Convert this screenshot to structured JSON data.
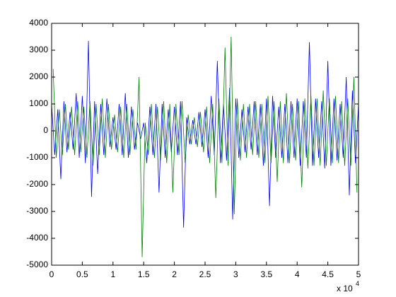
{
  "chart_data": {
    "type": "line",
    "x_multiplier": {
      "base": "x 10",
      "exponent": "4"
    },
    "xlim": [
      0,
      5
    ],
    "xticks": [
      0,
      0.5,
      1,
      1.5,
      2,
      2.5,
      3,
      3.5,
      4,
      4.5,
      5
    ],
    "ylim": [
      -5000,
      4000
    ],
    "yticks": [
      -5000,
      -4000,
      -3000,
      -2000,
      -1000,
      0,
      1000,
      2000,
      3000,
      4000
    ],
    "grid": false,
    "series": [
      {
        "color": "#0000ff",
        "x": [
          0,
          0.05,
          0.1,
          0.15,
          0.2,
          0.25,
          0.3,
          0.35,
          0.4,
          0.45,
          0.5,
          0.55,
          0.6,
          0.65,
          0.7,
          0.75,
          0.8,
          0.85,
          0.9,
          0.95,
          1,
          1.05,
          1.1,
          1.15,
          1.2,
          1.25,
          1.3,
          1.35,
          1.4,
          1.45,
          1.5,
          1.55,
          1.6,
          1.65,
          1.7,
          1.75,
          1.8,
          1.85,
          1.9,
          1.95,
          2,
          2.05,
          2.1,
          2.15,
          2.2,
          2.25,
          2.3,
          2.35,
          2.4,
          2.45,
          2.5,
          2.55,
          2.6,
          2.65,
          2.7,
          2.75,
          2.8,
          2.85,
          2.9,
          2.95,
          3,
          3.05,
          3.1,
          3.15,
          3.2,
          3.25,
          3.3,
          3.35,
          3.4,
          3.45,
          3.5,
          3.55,
          3.6,
          3.65,
          3.7,
          3.75,
          3.8,
          3.85,
          3.9,
          3.95,
          4,
          4.05,
          4.1,
          4.15,
          4.2,
          4.25,
          4.3,
          4.35,
          4.4,
          4.45,
          4.5,
          4.55,
          4.6,
          4.65,
          4.7,
          4.75,
          4.8,
          4.85,
          4.9,
          4.95,
          5
        ],
        "values": [
          1000,
          -900,
          800,
          -1800,
          1100,
          -800,
          700,
          -700,
          1400,
          -1000,
          1300,
          -1200,
          3350,
          -2450,
          1100,
          -1600,
          1000,
          -900,
          1200,
          -600,
          500,
          -700,
          1000,
          -900,
          1400,
          -1000,
          900,
          -700,
          300,
          -300,
          300,
          -1200,
          900,
          -900,
          1000,
          -2300,
          1000,
          -1000,
          800,
          -800,
          900,
          -900,
          1100,
          -3600,
          500,
          -500,
          400,
          -500,
          700,
          -600,
          800,
          -1000,
          1300,
          -900,
          2600,
          -1200,
          1000,
          -1100,
          1600,
          -3300,
          1200,
          -1000,
          800,
          -800,
          900,
          -700,
          1100,
          -900,
          1000,
          -1300,
          1200,
          -2800,
          1300,
          -1000,
          900,
          -1000,
          1000,
          -1200,
          1100,
          -1000,
          1200,
          -1300,
          1100,
          -1000,
          3300,
          -1300,
          1200,
          -1000,
          1100,
          -1400,
          2600,
          -1300,
          1200,
          -1100,
          1000,
          -1000,
          2000,
          -2400,
          1500,
          -1200,
          1000
        ]
      },
      {
        "color": "#008000",
        "x": [
          0.025,
          0.075,
          0.125,
          0.175,
          0.225,
          0.275,
          0.325,
          0.375,
          0.425,
          0.475,
          0.525,
          0.575,
          0.625,
          0.675,
          0.725,
          0.775,
          0.825,
          0.875,
          0.925,
          0.975,
          1.025,
          1.075,
          1.125,
          1.175,
          1.225,
          1.275,
          1.325,
          1.375,
          1.425,
          1.475,
          1.525,
          1.575,
          1.625,
          1.675,
          1.725,
          1.775,
          1.825,
          1.875,
          1.925,
          1.975,
          2.025,
          2.075,
          2.125,
          2.175,
          2.225,
          2.275,
          2.325,
          2.375,
          2.425,
          2.475,
          2.525,
          2.575,
          2.625,
          2.675,
          2.725,
          2.775,
          2.825,
          2.875,
          2.925,
          2.975,
          3.025,
          3.075,
          3.125,
          3.175,
          3.225,
          3.275,
          3.325,
          3.375,
          3.425,
          3.475,
          3.525,
          3.575,
          3.625,
          3.675,
          3.725,
          3.775,
          3.825,
          3.875,
          3.925,
          3.975,
          4.025,
          4.075,
          4.125,
          4.175,
          4.225,
          4.275,
          4.325,
          4.375,
          4.425,
          4.475,
          4.525,
          4.575,
          4.625,
          4.675,
          4.725,
          4.775,
          4.825,
          4.875,
          4.925,
          4.975
        ],
        "values": [
          2300,
          -1000,
          800,
          -900,
          1000,
          -700,
          900,
          -900,
          1100,
          -800,
          900,
          -1000,
          1100,
          -1300,
          1000,
          -900,
          1200,
          -1000,
          1000,
          -700,
          600,
          -800,
          900,
          -1000,
          1000,
          -900,
          800,
          -700,
          2000,
          -4700,
          300,
          -900,
          1000,
          -1000,
          900,
          -1100,
          1100,
          -1200,
          1000,
          -2300,
          1000,
          -900,
          1100,
          -1200,
          600,
          -500,
          500,
          -600,
          700,
          -800,
          900,
          -1200,
          1000,
          -2500,
          1200,
          -1200,
          3100,
          -1300,
          3500,
          -3100,
          1200,
          -1100,
          1000,
          -1000,
          1000,
          -900,
          1100,
          -1000,
          1000,
          -1200,
          1300,
          -1200,
          1100,
          -1900,
          1100,
          -1200,
          1400,
          -1200,
          1000,
          -1100,
          1100,
          -2100,
          1200,
          -1400,
          1300,
          -1300,
          1200,
          -1300,
          1500,
          -1300,
          1200,
          -1200,
          1300,
          -1200,
          1100,
          -1300,
          1200,
          -1300,
          2000,
          -2300
        ]
      }
    ]
  }
}
